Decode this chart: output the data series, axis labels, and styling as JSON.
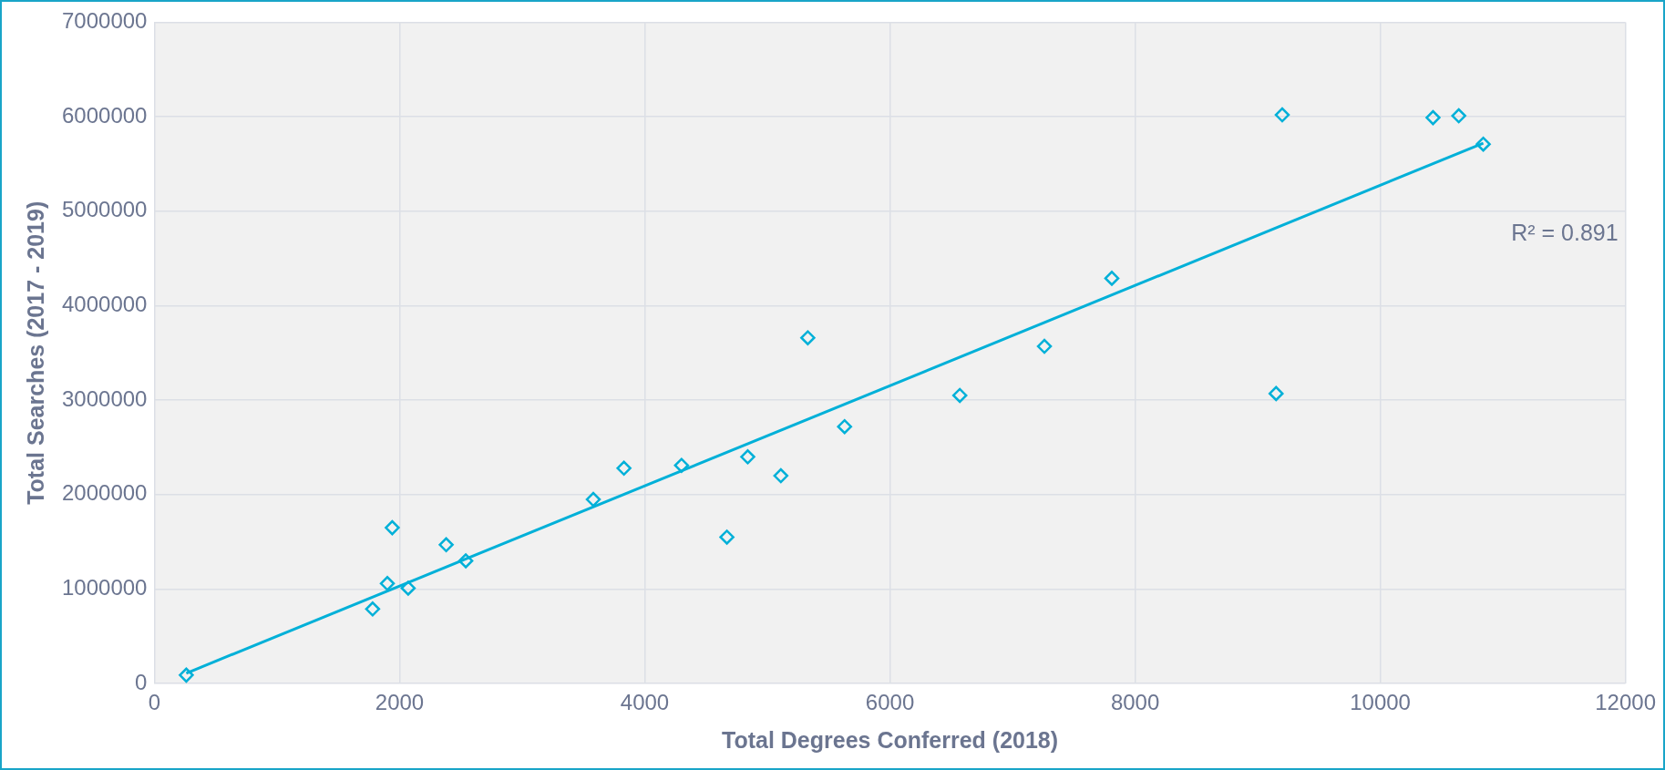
{
  "chart_data": {
    "type": "scatter",
    "xlabel": "Total Degrees Conferred (2018)",
    "ylabel": "Total Searches (2017 - 2019)",
    "xlim": [
      0,
      12000
    ],
    "xticks": [
      0,
      2000,
      4000,
      6000,
      8000,
      10000,
      12000
    ],
    "ylim": [
      0,
      7000000
    ],
    "yticks": [
      0,
      1000000,
      2000000,
      3000000,
      4000000,
      5000000,
      6000000,
      7000000
    ],
    "grid": true,
    "legend": false,
    "marker": "diamond",
    "series": [
      {
        "type": "scatter",
        "color": "#00b0d8",
        "x": [
          260,
          1780,
          1900,
          1940,
          2070,
          2380,
          2540,
          3580,
          3830,
          4300,
          4670,
          4840,
          5110,
          5330,
          5630,
          6570,
          7260,
          7810,
          9150,
          9200,
          10430,
          10640,
          10840
        ],
        "values": [
          90000,
          790000,
          1060000,
          1650000,
          1010000,
          1470000,
          1300000,
          1950000,
          2280000,
          2310000,
          1550000,
          2400000,
          2200000,
          3660000,
          2720000,
          3050000,
          3570000,
          4290000,
          3070000,
          6020000,
          5990000,
          6010000,
          5710000
        ]
      },
      {
        "type": "line",
        "color": "#00b0d8",
        "marker": "none",
        "x": [
          260,
          10840
        ],
        "values": [
          110000,
          5720000
        ]
      }
    ],
    "annotations": [
      "R² = 0.891"
    ]
  }
}
